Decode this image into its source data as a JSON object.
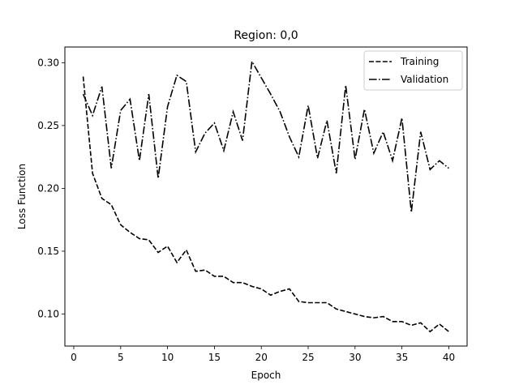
{
  "chart_data": {
    "type": "line",
    "title": "Region: 0,0",
    "xlabel": "Epoch",
    "ylabel": "Loss Function",
    "xlim": [
      -0.95,
      41.95
    ],
    "ylim": [
      0.0745,
      0.3125
    ],
    "xticks": [
      0,
      5,
      10,
      15,
      20,
      25,
      30,
      35,
      40
    ],
    "xtick_labels": [
      "0",
      "5",
      "10",
      "15",
      "20",
      "25",
      "30",
      "35",
      "40"
    ],
    "yticks": [
      0.1,
      0.15,
      0.2,
      0.25,
      0.3
    ],
    "ytick_labels": [
      "0.10",
      "0.15",
      "0.20",
      "0.25",
      "0.30"
    ],
    "grid": false,
    "legend_position": "top-right",
    "x": [
      1,
      2,
      3,
      4,
      5,
      6,
      7,
      8,
      9,
      10,
      11,
      12,
      13,
      14,
      15,
      16,
      17,
      18,
      19,
      20,
      21,
      22,
      23,
      24,
      25,
      26,
      27,
      28,
      29,
      30,
      31,
      32,
      33,
      34,
      35,
      36,
      37,
      38,
      39,
      40
    ],
    "series": [
      {
        "name": "Training",
        "style": "dashed",
        "color": "#000000",
        "values": [
          0.289,
          0.212,
          0.192,
          0.187,
          0.171,
          0.165,
          0.16,
          0.159,
          0.149,
          0.154,
          0.141,
          0.151,
          0.134,
          0.135,
          0.13,
          0.13,
          0.125,
          0.125,
          0.122,
          0.12,
          0.115,
          0.118,
          0.12,
          0.11,
          0.109,
          0.109,
          0.109,
          0.104,
          0.102,
          0.1,
          0.098,
          0.097,
          0.098,
          0.094,
          0.094,
          0.091,
          0.093,
          0.086,
          0.092,
          0.086
        ]
      },
      {
        "name": "Validation",
        "style": "dashdot",
        "color": "#000000",
        "values": [
          0.275,
          0.258,
          0.281,
          0.216,
          0.262,
          0.271,
          0.222,
          0.275,
          0.208,
          0.265,
          0.29,
          0.285,
          0.229,
          0.244,
          0.252,
          0.23,
          0.261,
          0.238,
          0.301,
          0.288,
          0.275,
          0.261,
          0.241,
          0.225,
          0.266,
          0.224,
          0.254,
          0.212,
          0.282,
          0.223,
          0.263,
          0.228,
          0.245,
          0.222,
          0.256,
          0.181,
          0.245,
          0.215,
          0.222,
          0.216
        ]
      }
    ]
  }
}
